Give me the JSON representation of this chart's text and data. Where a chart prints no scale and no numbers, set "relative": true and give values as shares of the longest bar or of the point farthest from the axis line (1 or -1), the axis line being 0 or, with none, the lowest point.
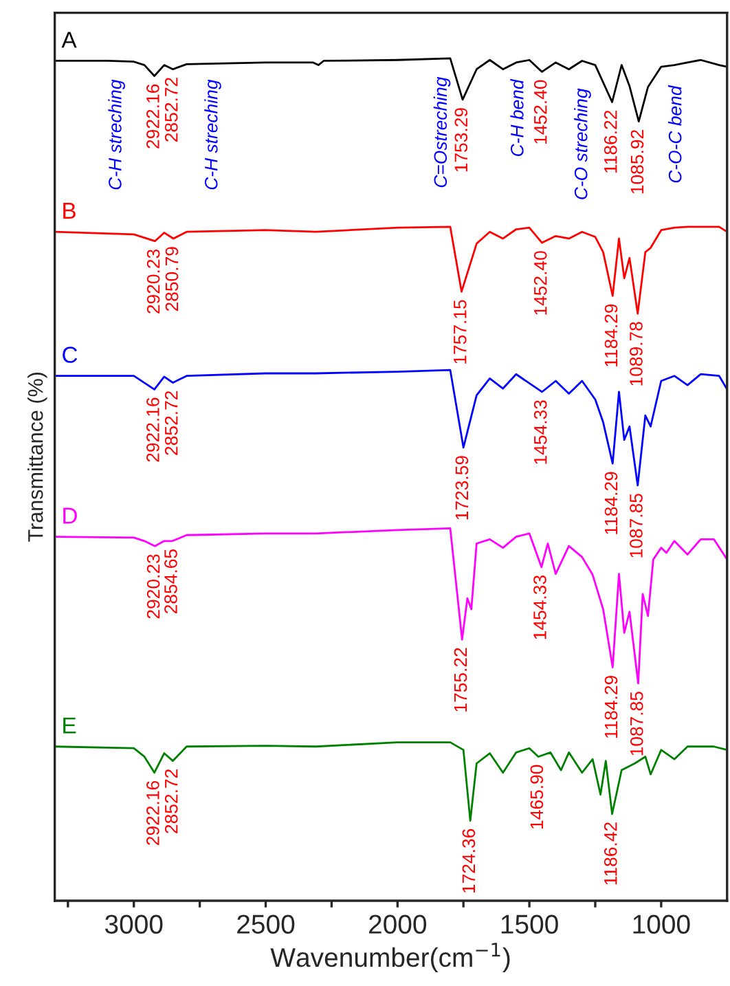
{
  "chart_data": {
    "type": "line",
    "relative": true,
    "xlabel": "Wavenumber(cm$^{−1}$)",
    "ylabel": "Transmittance (%)",
    "xlim": [
      3300,
      750
    ],
    "xticks": [
      {
        "value": 3250,
        "label": null
      },
      3000,
      {
        "value": 2750,
        "label": null
      },
      2500,
      {
        "value": 2250,
        "label": null
      },
      2000,
      {
        "value": 1750,
        "label": null
      },
      1500,
      {
        "value": 1250,
        "label": null
      },
      1000
    ],
    "tick_labels": "x",
    "grid": false,
    "legend": false,
    "marker": "none",
    "line_style": "solid",
    "x": [
      3300,
      3100,
      3000,
      2960,
      2922,
      2885,
      2852,
      2800,
      2500,
      2320,
      2300,
      2280,
      2000,
      1800,
      1753,
      1700,
      1650,
      1600,
      1550,
      1500,
      1452,
      1400,
      1350,
      1300,
      1250,
      1186,
      1150,
      1120,
      1085,
      1050,
      1000,
      950,
      900,
      850,
      780,
      750
    ],
    "series": [
      {
        "name": "A",
        "color": "#000000",
        "values": [
          0.997,
          0.997,
          0.996,
          0.992,
          0.979,
          0.992,
          0.987,
          0.993,
          0.995,
          0.995,
          0.992,
          0.997,
          0.998,
          1.0,
          0.951,
          0.987,
          0.998,
          0.987,
          0.995,
          0.998,
          0.984,
          0.995,
          0.987,
          0.997,
          0.992,
          0.948,
          0.992,
          0.967,
          0.925,
          0.966,
          0.99,
          0.992,
          0.995,
          0.998,
          0.992,
          0.99
        ]
      },
      {
        "name": "B",
        "color": "#ff0000",
        "x": [
          3300,
          3000,
          2920,
          2885,
          2850,
          2800,
          2500,
          2310,
          2000,
          1800,
          1757,
          1700,
          1650,
          1600,
          1550,
          1500,
          1452,
          1400,
          1350,
          1300,
          1250,
          1220,
          1184,
          1160,
          1140,
          1120,
          1089,
          1060,
          1040,
          1000,
          950,
          900,
          850,
          780,
          750
        ],
        "values": [
          0.794,
          0.791,
          0.783,
          0.793,
          0.786,
          0.794,
          0.796,
          0.794,
          0.799,
          0.8,
          0.723,
          0.78,
          0.794,
          0.786,
          0.797,
          0.799,
          0.781,
          0.789,
          0.786,
          0.794,
          0.788,
          0.77,
          0.718,
          0.786,
          0.739,
          0.763,
          0.697,
          0.77,
          0.775,
          0.796,
          0.799,
          0.8,
          0.8,
          0.8,
          0.794
        ]
      },
      {
        "name": "C",
        "color": "#0000ff",
        "x": [
          3300,
          3000,
          2922,
          2885,
          2852,
          2800,
          2500,
          2310,
          2000,
          1800,
          1750,
          1700,
          1650,
          1600,
          1550,
          1452,
          1400,
          1350,
          1300,
          1250,
          1220,
          1184,
          1160,
          1140,
          1120,
          1089,
          1060,
          1040,
          1000,
          950,
          900,
          850,
          780,
          750
        ],
        "values": [
          0.623,
          0.623,
          0.607,
          0.622,
          0.615,
          0.623,
          0.626,
          0.626,
          0.628,
          0.63,
          0.538,
          0.6,
          0.62,
          0.608,
          0.625,
          0.604,
          0.617,
          0.602,
          0.617,
          0.595,
          0.568,
          0.519,
          0.604,
          0.547,
          0.563,
          0.493,
          0.576,
          0.563,
          0.617,
          0.623,
          0.612,
          0.625,
          0.623,
          0.607
        ]
      },
      {
        "name": "D",
        "color": "#ff00ff",
        "x": [
          3300,
          3000,
          2960,
          2920,
          2885,
          2854,
          2800,
          2500,
          2310,
          2000,
          1800,
          1755,
          1735,
          1720,
          1700,
          1650,
          1600,
          1550,
          1500,
          1454,
          1430,
          1400,
          1350,
          1300,
          1260,
          1220,
          1184,
          1160,
          1140,
          1120,
          1087,
          1070,
          1050,
          1030,
          1000,
          980,
          950,
          900,
          850,
          800,
          750
        ],
        "values": [
          0.432,
          0.431,
          0.427,
          0.421,
          0.427,
          0.427,
          0.434,
          0.436,
          0.436,
          0.44,
          0.442,
          0.31,
          0.359,
          0.346,
          0.424,
          0.429,
          0.419,
          0.432,
          0.436,
          0.396,
          0.424,
          0.388,
          0.421,
          0.408,
          0.387,
          0.346,
          0.277,
          0.388,
          0.318,
          0.343,
          0.258,
          0.364,
          0.338,
          0.405,
          0.419,
          0.413,
          0.427,
          0.411,
          0.429,
          0.429,
          0.405
        ]
      },
      {
        "name": "E",
        "color": "#008000",
        "x": [
          3300,
          3000,
          2960,
          2922,
          2885,
          2852,
          2800,
          2500,
          2310,
          2000,
          1800,
          1750,
          1724,
          1700,
          1650,
          1600,
          1550,
          1500,
          1466,
          1420,
          1380,
          1350,
          1300,
          1260,
          1230,
          1210,
          1186,
          1150,
          1100,
          1060,
          1040,
          1000,
          950,
          900,
          800,
          750
        ],
        "values": [
          0.183,
          0.181,
          0.171,
          0.152,
          0.175,
          0.166,
          0.183,
          0.184,
          0.183,
          0.188,
          0.188,
          0.179,
          0.095,
          0.163,
          0.175,
          0.152,
          0.176,
          0.181,
          0.171,
          0.176,
          0.155,
          0.176,
          0.152,
          0.168,
          0.126,
          0.166,
          0.103,
          0.155,
          0.163,
          0.171,
          0.15,
          0.179,
          0.168,
          0.183,
          0.183,
          0.179
        ]
      }
    ],
    "annotations": [
      "C-H streching",
      "C-H streching",
      "C=Ostreching",
      "C-H bend",
      "C-O streching",
      "C-O-C bend",
      {
        "text": "2922.16",
        "x": 2922,
        "y": 0.979
      },
      {
        "text": "2852.72",
        "x": 2852,
        "y": 0.987
      },
      {
        "text": "1753.29",
        "x": 1753,
        "y": 0.951
      },
      {
        "text": "1452.40",
        "x": 1452,
        "y": 0.984
      },
      {
        "text": "1186.22",
        "x": 1186,
        "y": 0.948
      },
      {
        "text": "1085.92",
        "x": 1085,
        "y": 0.925
      },
      {
        "text": "2920.23",
        "x": 2920,
        "y": 0.783
      },
      {
        "text": "2850.79",
        "x": 2850,
        "y": 0.786
      },
      {
        "text": "1757.15",
        "x": 1757,
        "y": 0.723
      },
      {
        "text": "1452.40",
        "x": 1452,
        "y": 0.781
      },
      {
        "text": "1184.29",
        "x": 1184,
        "y": 0.718
      },
      {
        "text": "1089.78",
        "x": 1089,
        "y": 0.697
      },
      {
        "text": "2922.16",
        "x": 2922,
        "y": 0.607
      },
      {
        "text": "2852.72",
        "x": 2852,
        "y": 0.615
      },
      {
        "text": "1723.59",
        "x": 1750,
        "y": 0.538
      },
      {
        "text": "1454.33",
        "x": 1452,
        "y": 0.604
      },
      {
        "text": "1184.29",
        "x": 1184,
        "y": 0.519
      },
      {
        "text": "1087.85",
        "x": 1089,
        "y": 0.493
      },
      {
        "text": "2920.23",
        "x": 2920,
        "y": 0.421
      },
      {
        "text": "2854.65",
        "x": 2854,
        "y": 0.427
      },
      {
        "text": "1755.22",
        "x": 1755,
        "y": 0.31
      },
      {
        "text": "1454.33",
        "x": 1454,
        "y": 0.396
      },
      {
        "text": "1184.29",
        "x": 1184,
        "y": 0.277
      },
      {
        "text": "1087.85",
        "x": 1087,
        "y": 0.258
      },
      {
        "text": "2922.16",
        "x": 2922,
        "y": 0.152
      },
      {
        "text": "2852.72",
        "x": 2852,
        "y": 0.166
      },
      {
        "text": "1724.36",
        "x": 1724,
        "y": 0.095
      },
      {
        "text": "1465.90",
        "x": 1466,
        "y": 0.171
      },
      {
        "text": "1186.42",
        "x": 1186,
        "y": 0.103
      }
    ]
  }
}
